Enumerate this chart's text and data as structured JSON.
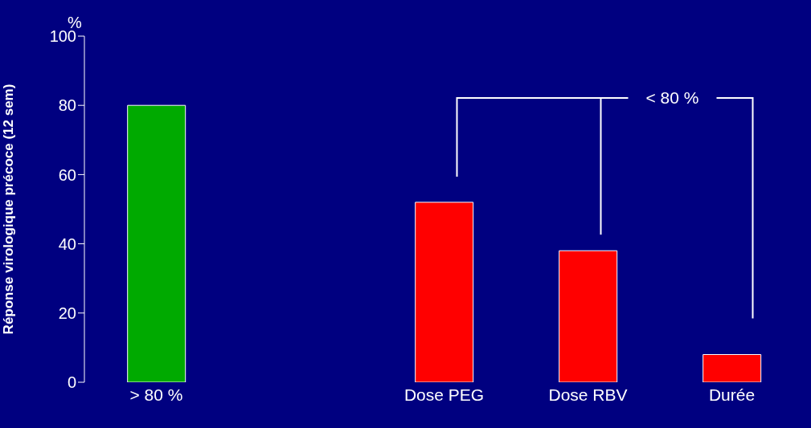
{
  "chart_data": {
    "type": "bar",
    "ylabel": "Réponse virologique précoce (12 sem)",
    "categories": [
      "> 80 %",
      null,
      "Dose PEG",
      "Dose RBV",
      "Durée"
    ],
    "values": [
      80,
      null,
      52,
      38,
      8
    ],
    "colors": [
      "#00aa00",
      null,
      "#ff0000",
      "#ff0000",
      "#ff0000"
    ],
    "ylim": [
      0,
      100
    ],
    "yticks": [
      0,
      20,
      40,
      60,
      80,
      100
    ],
    "annotations": [
      "%",
      "< 80 %"
    ]
  }
}
